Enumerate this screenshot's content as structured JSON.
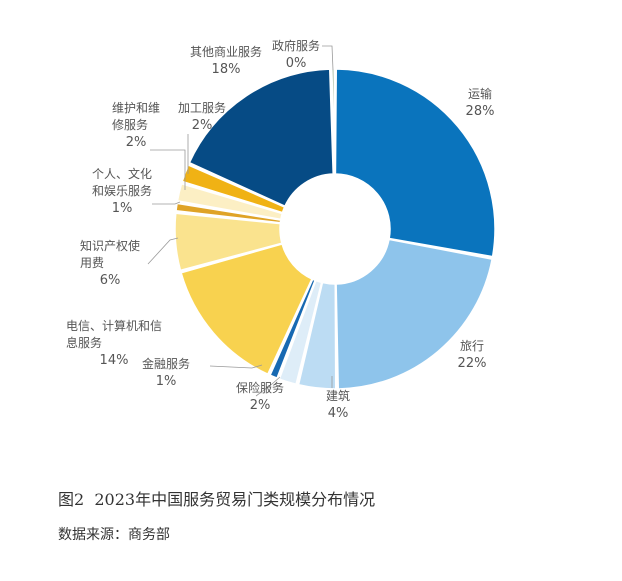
{
  "chart_data": {
    "type": "pie",
    "donut": true,
    "legend": "none",
    "slices": [
      {
        "label": "运输",
        "value": 28,
        "pct_text": "28%",
        "color": "#0a74bd"
      },
      {
        "label": "旅行",
        "value": 22,
        "pct_text": "22%",
        "color": "#8ec4eb"
      },
      {
        "label": "建筑",
        "value": 4,
        "pct_text": "4%",
        "color": "#bcdcf3"
      },
      {
        "label": "保险服务",
        "value": 2,
        "pct_text": "2%",
        "color": "#deedf8"
      },
      {
        "label": "金融服务",
        "value": 1,
        "pct_text": "1%",
        "color": "#1769b2"
      },
      {
        "label": "电信、计算机和信息服务",
        "value": 14,
        "pct_text": "14%",
        "color": "#f8d24f"
      },
      {
        "label": "知识产权使用费",
        "value": 6,
        "pct_text": "6%",
        "color": "#fae38e"
      },
      {
        "label": "个人、文化和娱乐服务",
        "value": 1,
        "pct_text": "1%",
        "color": "#dfa326"
      },
      {
        "label": "维护和维修服务",
        "value": 2,
        "pct_text": "2%",
        "color": "#fcefc4"
      },
      {
        "label": "加工服务",
        "value": 2,
        "pct_text": "2%",
        "color": "#f0b214"
      },
      {
        "label": "其他商业服务",
        "value": 18,
        "pct_text": "18%",
        "color": "#064b85"
      },
      {
        "label": "政府服务",
        "value": 0.4,
        "pct_text": "0%",
        "color": "#5b7a4a"
      }
    ]
  },
  "caption": {
    "figure_no": "图2",
    "title": "2023年中国服务贸易门类规模分布情况"
  },
  "source": "数据来源：商务部"
}
